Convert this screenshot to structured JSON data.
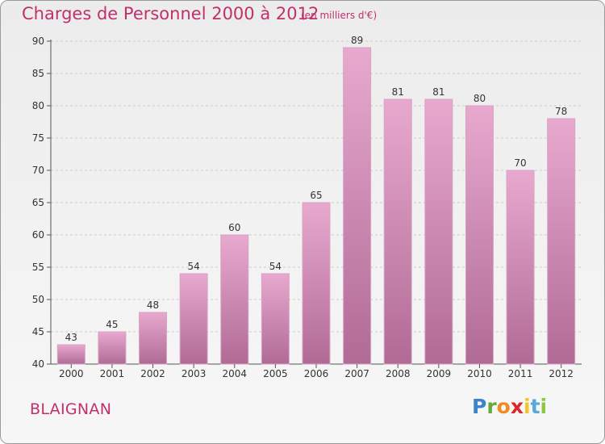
{
  "header": {
    "title": "Charges de Personnel 2000 à 2012",
    "subtitle": "(en milliers d'€)"
  },
  "footer": {
    "commune": "BLAIGNAN",
    "logo_text": "Proxiti"
  },
  "colors": {
    "title": "#c0306a",
    "bar_top": "#e8a9cf",
    "bar_bottom": "#b06b95",
    "grid": "#cccccc"
  },
  "chart_data": {
    "type": "bar",
    "title": "Charges de Personnel 2000 à 2012",
    "subtitle": "(en milliers d'€)",
    "categories": [
      "2000",
      "2001",
      "2002",
      "2003",
      "2004",
      "2005",
      "2006",
      "2007",
      "2008",
      "2009",
      "2010",
      "2011",
      "2012"
    ],
    "values": [
      43,
      45,
      48,
      54,
      60,
      54,
      65,
      89,
      81,
      81,
      80,
      70,
      78
    ],
    "ylim": [
      40,
      90
    ],
    "yticks": [
      40,
      45,
      50,
      55,
      60,
      65,
      70,
      75,
      80,
      85,
      90
    ],
    "grid": "dashed horizontal",
    "legend": "none"
  }
}
